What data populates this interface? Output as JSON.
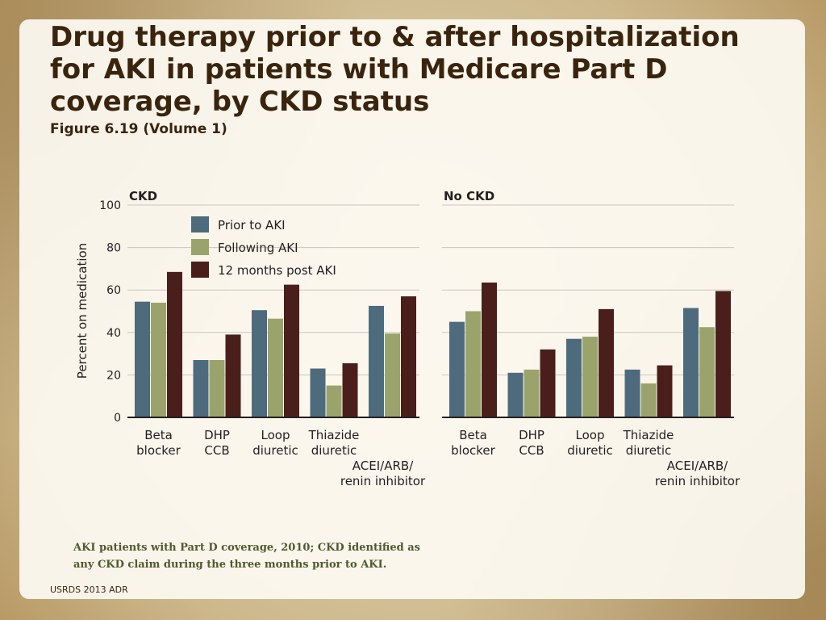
{
  "slide": {
    "title": "Drug therapy prior to & after hospitalization for AKI in patients with Medicare Part D coverage, by CKD status",
    "subtitle": "Figure 6.19 (Volume 1)",
    "footnote": "AKI patients with Part D coverage, 2010; CKD identified as any CKD claim during the three months prior to AKI.",
    "source": "USRDS 2013 ADR"
  },
  "chart_data": [
    {
      "type": "bar",
      "title": "CKD",
      "ylabel": "Percent on medication",
      "ylim": [
        0,
        100
      ],
      "yticks": [
        "0",
        "20",
        "40",
        "60",
        "80",
        "100"
      ],
      "grid": true,
      "legend_position": "top-left",
      "categories": [
        "Beta blocker",
        "DHP CCB",
        "Loop diuretic",
        "Thiazide diuretic",
        "ACEI/ARB/ renin inhibitor"
      ],
      "series": [
        {
          "name": "Prior to AKI",
          "color": "#4e6a7d",
          "values": [
            54.5,
            27,
            50.5,
            23,
            52.5
          ]
        },
        {
          "name": "Following AKI",
          "color": "#9ba36d",
          "values": [
            54,
            27,
            46.5,
            15,
            39.5
          ]
        },
        {
          "name": "12 months post AKI",
          "color": "#4a1f1b",
          "values": [
            68.5,
            39,
            62.5,
            25.5,
            57
          ]
        }
      ]
    },
    {
      "type": "bar",
      "title": "No CKD",
      "ylim": [
        0,
        100
      ],
      "grid": true,
      "categories": [
        "Beta blocker",
        "DHP CCB",
        "Loop diuretic",
        "Thiazide diuretic",
        "ACEI/ARB/ renin inhibitor"
      ],
      "series": [
        {
          "name": "Prior to AKI",
          "color": "#4e6a7d",
          "values": [
            45,
            21,
            37,
            22.5,
            51.5
          ]
        },
        {
          "name": "Following AKI",
          "color": "#9ba36d",
          "values": [
            50,
            22.5,
            38,
            16,
            42.5
          ]
        },
        {
          "name": "12 months post AKI",
          "color": "#4a1f1b",
          "values": [
            63.5,
            32,
            51,
            24.5,
            59.5
          ]
        }
      ]
    }
  ]
}
